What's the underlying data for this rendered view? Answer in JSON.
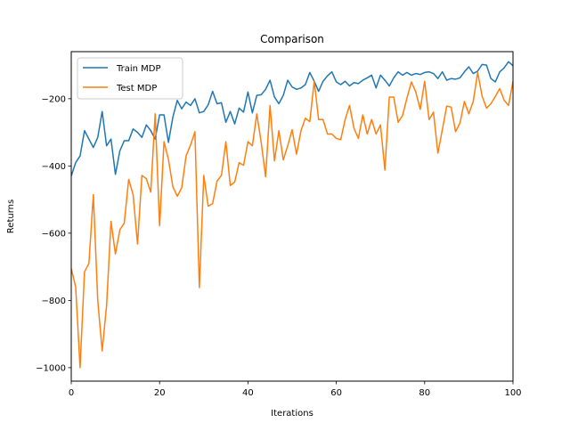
{
  "chart_data": {
    "type": "line",
    "title": "Comparison",
    "xlabel": "Iterations",
    "ylabel": "Returns",
    "xlim": [
      0,
      100
    ],
    "ylim": [
      -1040,
      -60
    ],
    "xticks": [
      0,
      20,
      40,
      60,
      80,
      100
    ],
    "yticks": [
      -1000,
      -800,
      -600,
      -400,
      -200
    ],
    "ytick_labels": [
      "−1000",
      "−800",
      "−600",
      "−400",
      "−200"
    ],
    "xtick_labels": [
      "0",
      "20",
      "40",
      "60",
      "80",
      "100"
    ],
    "grid": false,
    "legend_position": "top-left",
    "series": [
      {
        "name": "Train MDP",
        "color": "#1f77b4",
        "x": [
          0,
          1,
          2,
          3,
          4,
          5,
          6,
          7,
          8,
          9,
          10,
          11,
          12,
          13,
          14,
          15,
          16,
          17,
          18,
          19,
          20,
          21,
          22,
          23,
          24,
          25,
          26,
          27,
          28,
          29,
          30,
          31,
          32,
          33,
          34,
          35,
          36,
          37,
          38,
          39,
          40,
          41,
          42,
          43,
          44,
          45,
          46,
          47,
          48,
          49,
          50,
          51,
          52,
          53,
          54,
          55,
          56,
          57,
          58,
          59,
          60,
          61,
          62,
          63,
          64,
          65,
          66,
          67,
          68,
          69,
          70,
          71,
          72,
          73,
          74,
          75,
          76,
          77,
          78,
          79,
          80,
          81,
          82,
          83,
          84,
          85,
          86,
          87,
          88,
          89,
          90,
          91,
          92,
          93,
          94,
          95,
          96,
          97,
          98,
          99,
          100
        ],
        "values": [
          -430,
          -390,
          -370,
          -295,
          -320,
          -345,
          -315,
          -238,
          -340,
          -320,
          -425,
          -355,
          -325,
          -325,
          -290,
          -300,
          -315,
          -278,
          -295,
          -320,
          -248,
          -248,
          -330,
          -255,
          -205,
          -230,
          -210,
          -220,
          -200,
          -242,
          -238,
          -218,
          -178,
          -215,
          -212,
          -270,
          -238,
          -275,
          -228,
          -240,
          -180,
          -242,
          -190,
          -188,
          -172,
          -145,
          -195,
          -215,
          -190,
          -145,
          -165,
          -172,
          -168,
          -158,
          -122,
          -148,
          -178,
          -148,
          -132,
          -120,
          -150,
          -158,
          -148,
          -162,
          -152,
          -155,
          -145,
          -138,
          -130,
          -168,
          -130,
          -145,
          -162,
          -138,
          -120,
          -130,
          -122,
          -130,
          -125,
          -128,
          -122,
          -120,
          -125,
          -140,
          -120,
          -145,
          -140,
          -142,
          -138,
          -120,
          -105,
          -125,
          -118,
          -98,
          -100,
          -140,
          -150,
          -120,
          -108,
          -90,
          -102
        ]
      },
      {
        "name": "Test MDP",
        "color": "#ff7f0e",
        "x": [
          0,
          1,
          2,
          3,
          4,
          5,
          6,
          7,
          8,
          9,
          10,
          11,
          12,
          13,
          14,
          15,
          16,
          17,
          18,
          19,
          20,
          21,
          22,
          23,
          24,
          25,
          26,
          27,
          28,
          29,
          30,
          31,
          32,
          33,
          34,
          35,
          36,
          37,
          38,
          39,
          40,
          41,
          42,
          43,
          44,
          45,
          46,
          47,
          48,
          49,
          50,
          51,
          52,
          53,
          54,
          55,
          56,
          57,
          58,
          59,
          60,
          61,
          62,
          63,
          64,
          65,
          66,
          67,
          68,
          69,
          70,
          71,
          72,
          73,
          74,
          75,
          76,
          77,
          78,
          79,
          80,
          81,
          82,
          83,
          84,
          85,
          86,
          87,
          88,
          89,
          90,
          91,
          92,
          93,
          94,
          95,
          96,
          97,
          98,
          99,
          100
        ],
        "values": [
          -705,
          -760,
          -1000,
          -715,
          -690,
          -485,
          -800,
          -950,
          -815,
          -565,
          -662,
          -590,
          -570,
          -440,
          -485,
          -632,
          -428,
          -438,
          -478,
          -245,
          -578,
          -328,
          -380,
          -462,
          -490,
          -465,
          -370,
          -338,
          -298,
          -762,
          -428,
          -520,
          -512,
          -445,
          -428,
          -328,
          -458,
          -448,
          -390,
          -398,
          -328,
          -340,
          -245,
          -330,
          -432,
          -220,
          -385,
          -295,
          -382,
          -340,
          -292,
          -365,
          -295,
          -258,
          -268,
          -148,
          -262,
          -262,
          -305,
          -305,
          -318,
          -322,
          -262,
          -220,
          -288,
          -318,
          -248,
          -305,
          -262,
          -305,
          -278,
          -412,
          -195,
          -195,
          -270,
          -250,
          -198,
          -150,
          -180,
          -232,
          -148,
          -262,
          -240,
          -362,
          -292,
          -222,
          -225,
          -298,
          -272,
          -208,
          -245,
          -208,
          -122,
          -192,
          -228,
          -215,
          -193,
          -170,
          -205,
          -220,
          -148
        ]
      }
    ]
  }
}
